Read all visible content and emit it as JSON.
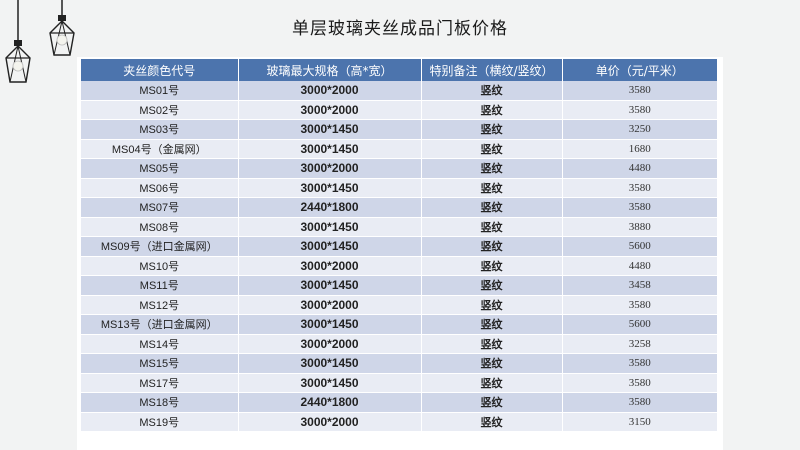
{
  "page": {
    "title": "单层玻璃夹丝成品门板价格"
  },
  "table": {
    "headers": [
      "夹丝颜色代号",
      "玻璃最大规格（高*宽）",
      "特别备注（横纹/竖纹）",
      "单价（元/平米）"
    ],
    "rows": [
      [
        "MS01号",
        "3000*2000",
        "竖纹",
        "3580"
      ],
      [
        "MS02号",
        "3000*2000",
        "竖纹",
        "3580"
      ],
      [
        "MS03号",
        "3000*1450",
        "竖纹",
        "3250"
      ],
      [
        "MS04号（金属网）",
        "3000*1450",
        "竖纹",
        "1680"
      ],
      [
        "MS05号",
        "3000*2000",
        "竖纹",
        "4480"
      ],
      [
        "MS06号",
        "3000*1450",
        "竖纹",
        "3580"
      ],
      [
        "MS07号",
        "2440*1800",
        "竖纹",
        "3580"
      ],
      [
        "MS08号",
        "3000*1450",
        "竖纹",
        "3880"
      ],
      [
        "MS09号（进口金属网）",
        "3000*1450",
        "竖纹",
        "5600"
      ],
      [
        "MS10号",
        "3000*2000",
        "竖纹",
        "4480"
      ],
      [
        "MS11号",
        "3000*1450",
        "竖纹",
        "3458"
      ],
      [
        "MS12号",
        "3000*2000",
        "竖纹",
        "3580"
      ],
      [
        "MS13号（进口金属网）",
        "3000*1450",
        "竖纹",
        "5600"
      ],
      [
        "MS14号",
        "3000*2000",
        "竖纹",
        "3258"
      ],
      [
        "MS15号",
        "3000*1450",
        "竖纹",
        "3580"
      ],
      [
        "MS17号",
        "3000*1450",
        "竖纹",
        "3580"
      ],
      [
        "MS18号",
        "2440*1800",
        "竖纹",
        "3580"
      ],
      [
        "MS19号",
        "3000*2000",
        "竖纹",
        "3150"
      ]
    ]
  },
  "icons": {
    "decoration": "pendant-lamp-icon"
  },
  "colors": {
    "header": "#4c74ad",
    "row_odd": "#cfd6e8",
    "row_even": "#e9ecf4"
  }
}
